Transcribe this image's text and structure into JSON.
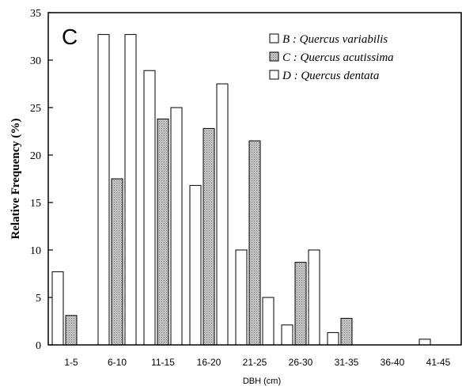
{
  "chart_data": {
    "type": "bar",
    "panel_label": "C",
    "categories": [
      "1-5",
      "6-10",
      "11-15",
      "16-20",
      "21-25",
      "26-30",
      "31-35",
      "36-40",
      "41-45"
    ],
    "series": [
      {
        "name": "B : Quercus variabilis",
        "fill": "white",
        "values": [
          7.7,
          32.7,
          28.9,
          16.8,
          10.0,
          2.1,
          1.3,
          0,
          0.6
        ]
      },
      {
        "name": "C : Quercus acutissima",
        "fill": "stippled",
        "values": [
          3.1,
          17.5,
          23.8,
          22.8,
          21.5,
          8.7,
          2.8,
          0,
          0
        ]
      },
      {
        "name": "D : Quercus dentata",
        "fill": "white",
        "values": [
          0,
          32.7,
          25.0,
          27.5,
          5.0,
          10.0,
          0,
          0,
          0
        ]
      }
    ],
    "xlabel": "DBH (cm)",
    "ylabel": "Relative Frequency (%)",
    "ylim": [
      0,
      35
    ],
    "yticks": [
      0,
      5,
      10,
      15,
      20,
      25,
      30,
      35
    ],
    "legend_position": "top-right",
    "grid": false
  }
}
